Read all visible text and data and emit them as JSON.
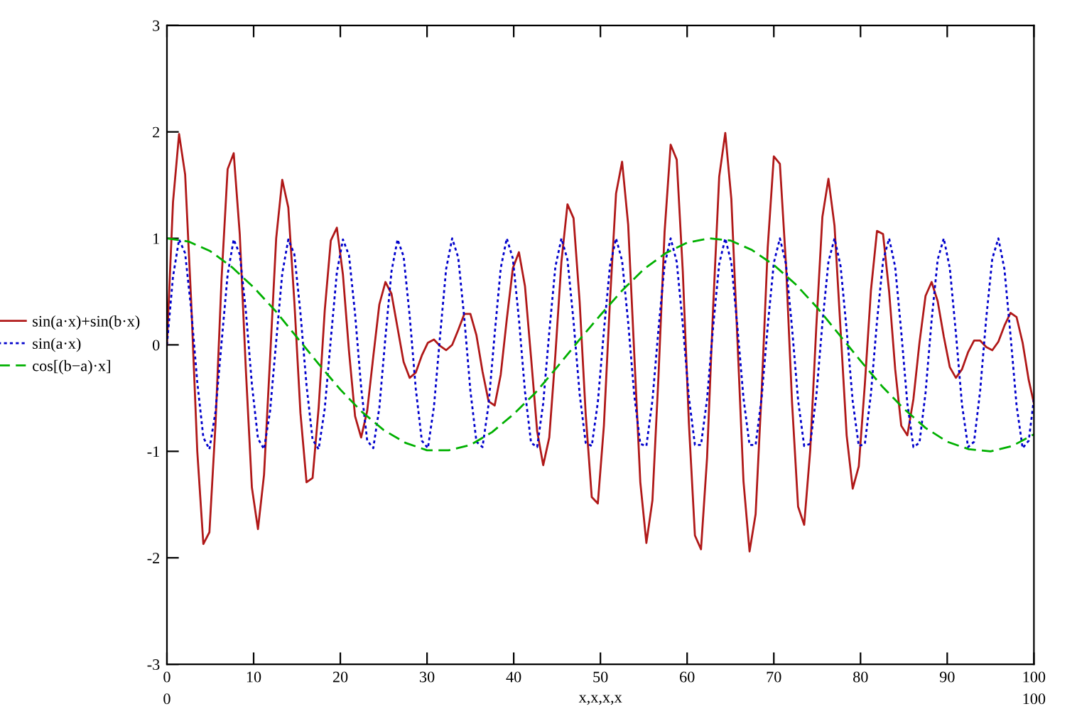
{
  "chart_data": {
    "type": "line",
    "xlabel": "x,x,x,x",
    "xlim": [
      0,
      100
    ],
    "xticks": [
      0,
      10,
      20,
      30,
      40,
      50,
      60,
      70,
      80,
      90,
      100
    ],
    "ylim": [
      -3,
      3
    ],
    "yticks": [
      -3,
      -2,
      -1,
      0,
      1,
      2,
      3
    ],
    "grid": false,
    "legend": "left",
    "marker": "none",
    "annotations": [
      "0",
      "100"
    ],
    "series": [
      {
        "name": "sin(a·x)+sin(b·x)",
        "color": "#b01818",
        "line_style": "solid",
        "x": [
          0,
          0.7,
          1.4,
          2.1,
          2.8,
          3.5,
          4.2,
          4.9,
          5.6,
          6.3,
          7,
          7.7,
          8.4,
          9.1,
          9.8,
          10.5,
          11.2,
          11.9,
          12.6,
          13.3,
          14,
          14.7,
          15.4,
          16.1,
          16.8,
          17.5,
          18.2,
          18.9,
          19.6,
          20.3,
          21,
          21.7,
          22.4,
          23.1,
          23.8,
          24.5,
          25.2,
          25.9,
          26.6,
          27.3,
          28,
          28.7,
          29.4,
          30.1,
          30.8,
          31.5,
          32.2,
          32.9,
          33.6,
          34.3,
          35,
          35.7,
          36.4,
          37.1,
          37.8,
          38.5,
          39.2,
          39.9,
          40.6,
          41.3,
          42,
          42.7,
          43.4,
          44.1,
          44.8,
          45.5,
          46.2,
          46.9,
          47.6,
          48.3,
          49,
          49.7,
          50.4,
          51.1,
          51.8,
          52.5,
          53.2,
          53.9,
          54.6,
          55.3,
          56,
          56.7,
          57.4,
          58.1,
          58.8,
          59.5,
          60.2,
          60.9,
          61.6,
          62.3,
          63,
          63.7,
          64.4,
          65.1,
          65.8,
          66.5,
          67.2,
          67.9,
          68.6,
          69.3,
          70,
          70.7,
          71.4,
          72.1,
          72.8,
          73.5,
          74.2,
          74.9,
          75.6,
          76.3,
          77,
          77.7,
          78.4,
          79.1,
          79.8,
          80.5,
          81.2,
          81.9,
          82.6,
          83.3,
          84,
          84.7,
          85.4,
          86.1,
          86.8,
          87.5,
          88.2,
          88.9,
          89.6,
          90.3,
          91,
          91.7,
          92.4,
          93.1,
          93.8,
          94.5,
          95.2,
          95.9,
          96.6,
          97.3,
          98,
          98.7,
          99.4,
          100
        ],
        "values": [
          0,
          1.34,
          1.98,
          1.6,
          0.4,
          -1,
          -1.87,
          -1.76,
          -0.75,
          0.62,
          1.65,
          1.8,
          1.04,
          -0.23,
          -1.34,
          -1.73,
          -1.22,
          -0.12,
          1,
          1.55,
          1.29,
          0.4,
          -0.64,
          -1.29,
          -1.25,
          -0.59,
          0.32,
          0.98,
          1.1,
          0.66,
          -0.06,
          -0.67,
          -0.87,
          -0.62,
          -0.11,
          0.38,
          0.59,
          0.48,
          0.16,
          -0.16,
          -0.31,
          -0.26,
          -0.1,
          0.02,
          0.05,
          -0.01,
          -0.05,
          0,
          0.14,
          0.29,
          0.29,
          0.09,
          -0.25,
          -0.53,
          -0.57,
          -0.28,
          0.24,
          0.72,
          0.87,
          0.55,
          -0.12,
          -0.81,
          -1.13,
          -0.87,
          -0.1,
          0.78,
          1.32,
          1.19,
          0.41,
          -0.65,
          -1.43,
          -1.49,
          -0.76,
          0.41,
          1.42,
          1.72,
          1.13,
          -0.08,
          -1.29,
          -1.86,
          -1.46,
          -0.29,
          1.06,
          1.88,
          1.74,
          0.69,
          -0.73,
          -1.79,
          -1.92,
          -1.06,
          0.35,
          1.58,
          1.99,
          1.37,
          0.05,
          -1.28,
          -1.94,
          -1.59,
          -0.43,
          0.92,
          1.77,
          1.7,
          0.76,
          -0.54,
          -1.52,
          -1.69,
          -0.99,
          0.17,
          1.2,
          1.56,
          1.12,
          0.14,
          -0.85,
          -1.35,
          -1.14,
          -0.37,
          0.51,
          1.07,
          1.04,
          0.5,
          -0.23,
          -0.76,
          -0.85,
          -0.51,
          0.02,
          0.46,
          0.59,
          0.41,
          0.08,
          -0.21,
          -0.31,
          -0.23,
          -0.07,
          0.04,
          0.04,
          -0.02,
          -0.05,
          0.03,
          0.18,
          0.3,
          0.26,
          0.02,
          -0.33,
          -0.55
        ]
      },
      {
        "name": "sin(a·x)",
        "color": "#0000cc",
        "line_style": "dotted",
        "x": [
          0,
          0.7,
          1.4,
          2.1,
          2.8,
          3.5,
          4.2,
          4.9,
          5.6,
          6.3,
          7,
          7.7,
          8.4,
          9.1,
          9.8,
          10.5,
          11.2,
          11.9,
          12.6,
          13.3,
          14,
          14.7,
          15.4,
          16.1,
          16.8,
          17.5,
          18.2,
          18.9,
          19.6,
          20.3,
          21,
          21.7,
          22.4,
          23.1,
          23.8,
          24.5,
          25.2,
          25.9,
          26.6,
          27.3,
          28,
          28.7,
          29.4,
          30.1,
          30.8,
          31.5,
          32.2,
          32.9,
          33.6,
          34.3,
          35,
          35.7,
          36.4,
          37.1,
          37.8,
          38.5,
          39.2,
          39.9,
          40.6,
          41.3,
          42,
          42.7,
          43.4,
          44.1,
          44.8,
          45.5,
          46.2,
          46.9,
          47.6,
          48.3,
          49,
          49.7,
          50.4,
          51.1,
          51.8,
          52.5,
          53.2,
          53.9,
          54.6,
          55.3,
          56,
          56.7,
          57.4,
          58.1,
          58.8,
          59.5,
          60.2,
          60.9,
          61.6,
          62.3,
          63,
          63.7,
          64.4,
          65.1,
          65.8,
          66.5,
          67.2,
          67.9,
          68.6,
          69.3,
          70,
          70.7,
          71.4,
          72.1,
          72.8,
          73.5,
          74.2,
          74.9,
          75.6,
          76.3,
          77,
          77.7,
          78.4,
          79.1,
          79.8,
          80.5,
          81.2,
          81.9,
          82.6,
          83.3,
          84,
          84.7,
          85.4,
          86.1,
          86.8,
          87.5,
          88.2,
          88.9,
          89.6,
          90.3,
          91,
          91.7,
          92.4,
          93.1,
          93.8,
          94.5,
          95.2,
          95.9,
          96.6,
          97.3,
          98,
          98.7,
          99.4,
          100
        ],
        "values": [
          0,
          0.64,
          0.99,
          0.86,
          0.33,
          -0.35,
          -0.87,
          -0.98,
          -0.63,
          0.02,
          0.66,
          0.99,
          0.85,
          0.32,
          -0.37,
          -0.88,
          -0.98,
          -0.62,
          0.03,
          0.67,
          0.99,
          0.85,
          0.3,
          -0.38,
          -0.89,
          -0.98,
          -0.6,
          0.05,
          0.68,
          0.99,
          0.84,
          0.29,
          -0.4,
          -0.9,
          -0.97,
          -0.59,
          0.07,
          0.69,
          0.99,
          0.83,
          0.27,
          -0.41,
          -0.9,
          -0.97,
          -0.58,
          0.08,
          0.71,
          1,
          0.82,
          0.25,
          -0.43,
          -0.91,
          -0.96,
          -0.56,
          0.1,
          0.72,
          1,
          0.81,
          0.24,
          -0.44,
          -0.92,
          -0.96,
          -0.55,
          0.12,
          0.73,
          1,
          0.8,
          0.22,
          -0.46,
          -0.92,
          -0.95,
          -0.54,
          0.13,
          0.74,
          1,
          0.79,
          0.21,
          -0.47,
          -0.93,
          -0.95,
          -0.52,
          0.15,
          0.75,
          1,
          0.78,
          0.19,
          -0.49,
          -0.94,
          -0.94,
          -0.51,
          0.17,
          0.76,
          1,
          0.77,
          0.17,
          -0.5,
          -0.94,
          -0.94,
          -0.49,
          0.18,
          0.77,
          1,
          0.76,
          0.16,
          -0.52,
          -0.95,
          -0.93,
          -0.48,
          0.2,
          0.78,
          1,
          0.74,
          0.14,
          -0.53,
          -0.95,
          -0.93,
          -0.46,
          0.22,
          0.79,
          1,
          0.73,
          0.12,
          -0.55,
          -0.96,
          -0.92,
          -0.45,
          0.23,
          0.8,
          1,
          0.72,
          0.11,
          -0.56,
          -0.96,
          -0.91,
          -0.43,
          0.25,
          0.81,
          1,
          0.71,
          0.09,
          -0.57,
          -0.97,
          -0.9,
          -0.51
        ]
      },
      {
        "name": "cos[(b−a)·x]",
        "color": "#00b000",
        "line_style": "dashed",
        "x": [
          0,
          2.5,
          5,
          7.5,
          10,
          12.5,
          15,
          17.5,
          20,
          22.5,
          25,
          27.5,
          30,
          32.5,
          35,
          37.5,
          40,
          42.5,
          45,
          47.5,
          50,
          52.5,
          55,
          57.5,
          60,
          62.5,
          65,
          67.5,
          70,
          72.5,
          75,
          77.5,
          80,
          82.5,
          85,
          87.5,
          90,
          92.5,
          95,
          97.5,
          100
        ],
        "values": [
          1,
          0.97,
          0.88,
          0.73,
          0.54,
          0.32,
          0.07,
          -0.18,
          -0.42,
          -0.63,
          -0.8,
          -0.92,
          -0.99,
          -0.99,
          -0.94,
          -0.82,
          -0.65,
          -0.45,
          -0.21,
          0.04,
          0.28,
          0.51,
          0.71,
          0.86,
          0.96,
          1,
          0.98,
          0.89,
          0.75,
          0.57,
          0.35,
          0.1,
          -0.15,
          -0.39,
          -0.6,
          -0.78,
          -0.91,
          -0.98,
          -1,
          -0.95,
          -0.84
        ]
      }
    ]
  }
}
